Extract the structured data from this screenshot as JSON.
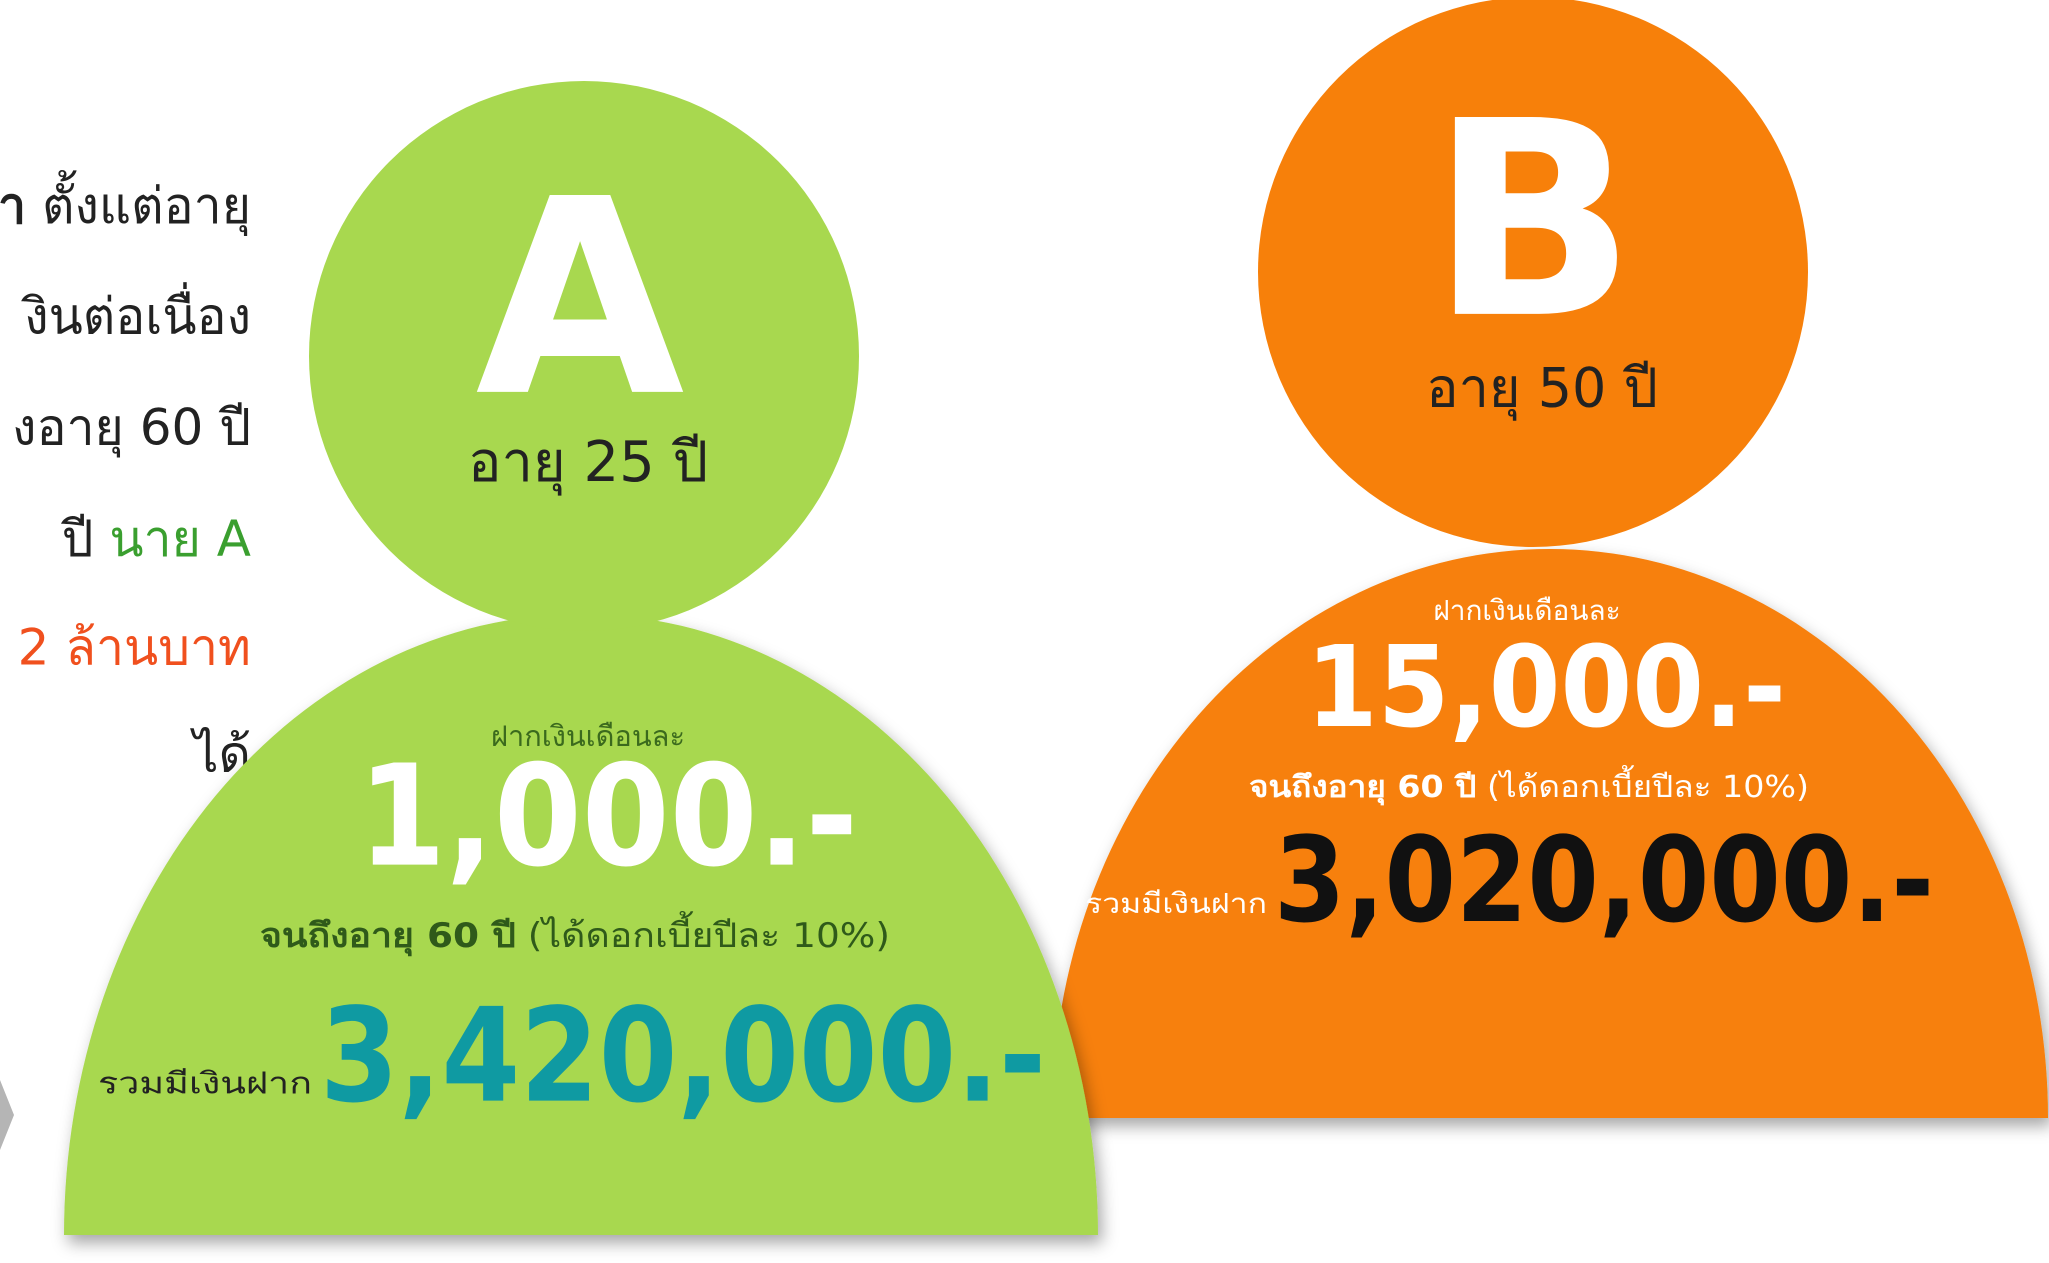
{
  "intro": {
    "lines": [
      [
        "า",
        " ตั้งแต่อายุ"
      ],
      [
        "งินต่อเนื่อง"
      ],
      [
        "งอายุ 60 ปี"
      ],
      [
        "ปี ",
        "นาย A"
      ],
      [
        "2 ล้านบาท"
      ],
      [
        "ได้"
      ]
    ]
  },
  "person_a": {
    "letter": "A",
    "age": "อายุ 25 ปี",
    "deposit_label": "ฝากเงินเดือนละ",
    "deposit": "1,000.-",
    "condition_bold": "จนถึงอายุ 60 ปี",
    "condition_rest": " (ได้ดอกเบี้ยปีละ 10%)",
    "total_label": "รวมมีเงินฝาก",
    "total": "3,420,000.-"
  },
  "person_b": {
    "letter": "B",
    "age": "อายุ 50 ปี",
    "deposit_label": "ฝากเงินเดือนละ",
    "deposit": "15,000.-",
    "condition_bold": "จนถึงอายุ 60 ปี",
    "condition_rest": " (ได้ดอกเบี้ยปีละ 10%)",
    "total_label": "รวมมีเงินฝาก",
    "total": "3,020,000.-"
  }
}
